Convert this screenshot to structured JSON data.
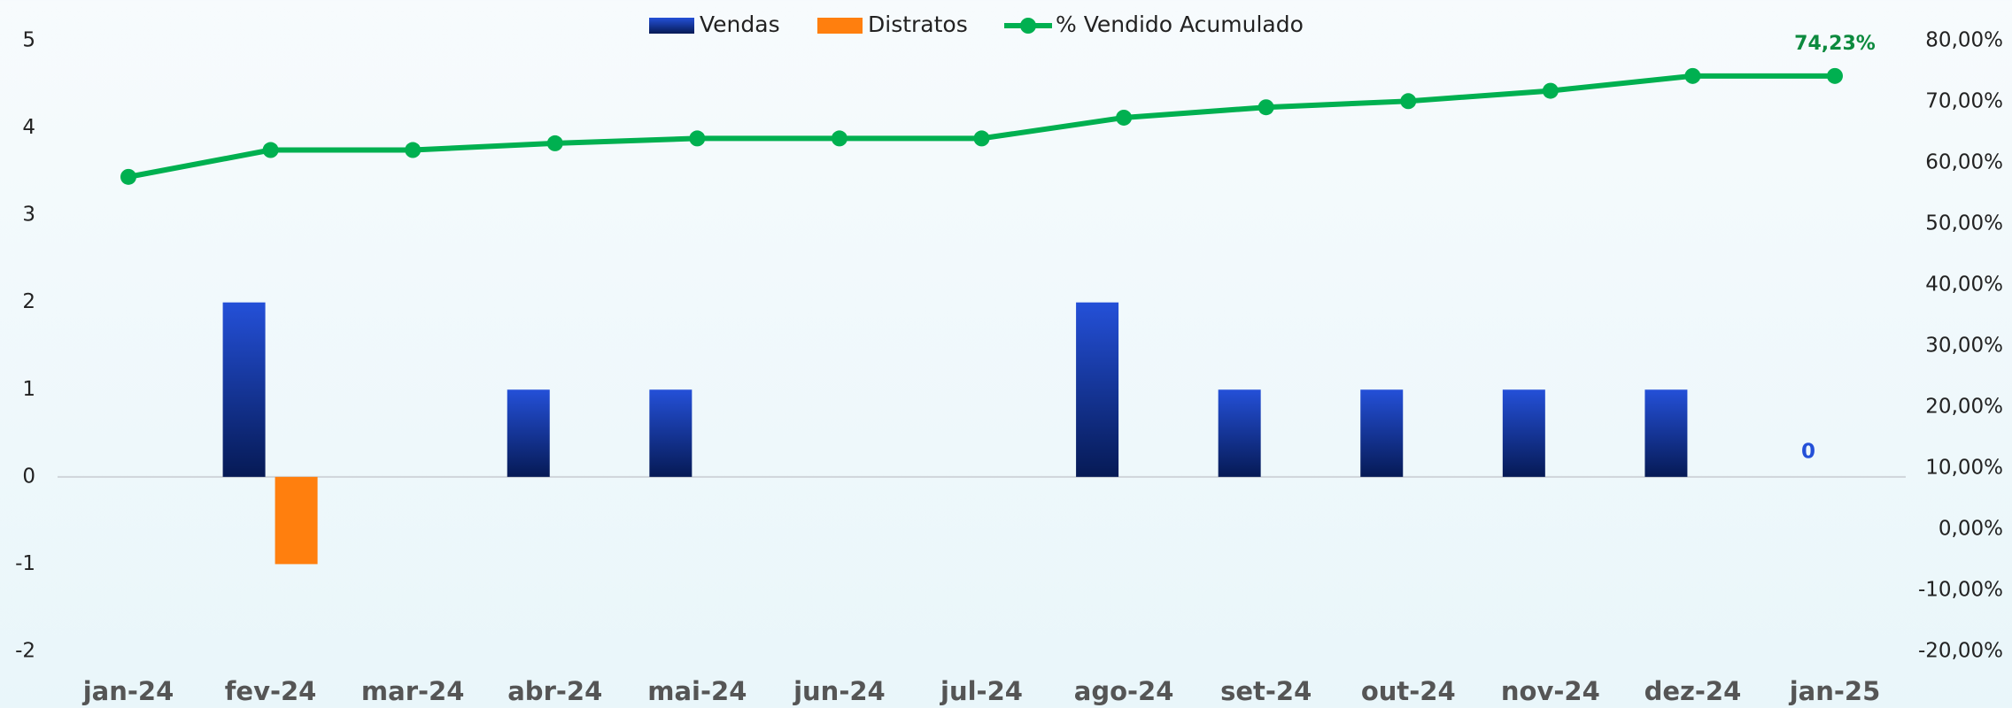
{
  "chart_data": {
    "type": "bar",
    "categories": [
      "jan-24",
      "fev-24",
      "mar-24",
      "abr-24",
      "mai-24",
      "jun-24",
      "jul-24",
      "ago-24",
      "set-24",
      "out-24",
      "nov-24",
      "dez-24",
      "jan-25"
    ],
    "series": [
      {
        "name": "Vendas",
        "color": "#2450d8",
        "type": "bar",
        "values": [
          0,
          2,
          0,
          1,
          1,
          0,
          0,
          2,
          1,
          1,
          1,
          1,
          0
        ],
        "value_labels": [
          null,
          null,
          null,
          null,
          null,
          null,
          null,
          null,
          null,
          null,
          null,
          null,
          "0"
        ]
      },
      {
        "name": "Distratos",
        "color": "#ff7f0e",
        "type": "bar",
        "values": [
          0,
          -1,
          0,
          0,
          0,
          0,
          0,
          0,
          0,
          0,
          0,
          0,
          0
        ]
      },
      {
        "name": "% Vendido Acumulado",
        "color": "#00b050",
        "type": "line",
        "axis": "y2",
        "values": [
          57.7,
          62.1,
          62.1,
          63.2,
          64.0,
          64.0,
          64.0,
          67.4,
          69.1,
          70.1,
          71.8,
          74.23,
          74.23
        ],
        "value_labels": [
          null,
          null,
          null,
          null,
          null,
          null,
          null,
          null,
          null,
          null,
          null,
          null,
          "74,23%"
        ]
      }
    ],
    "ylim": [
      -2,
      5
    ],
    "yticks": [
      -2,
      -1,
      0,
      1,
      2,
      3,
      4,
      5
    ],
    "y2lim": [
      -20,
      80
    ],
    "y2ticks": [
      {
        "value": -20,
        "label": "-20,00%"
      },
      {
        "value": -10,
        "label": "-10,00%"
      },
      {
        "value": 0,
        "label": "0,00%"
      },
      {
        "value": 10,
        "label": "10,00%"
      },
      {
        "value": 20,
        "label": "20,00%"
      },
      {
        "value": 30,
        "label": "30,00%"
      },
      {
        "value": 40,
        "label": "40,00%"
      },
      {
        "value": 50,
        "label": "50,00%"
      },
      {
        "value": 60,
        "label": "60,00%"
      },
      {
        "value": 70,
        "label": "70,00%"
      },
      {
        "value": 80,
        "label": "80,00%"
      }
    ],
    "legend": "top",
    "grid": false
  }
}
